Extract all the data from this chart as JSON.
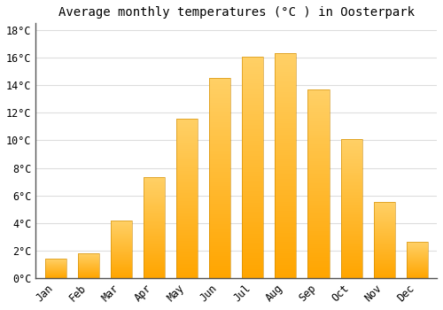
{
  "title": "Average monthly temperatures (°C ) in Oosterpark",
  "months": [
    "Jan",
    "Feb",
    "Mar",
    "Apr",
    "May",
    "Jun",
    "Jul",
    "Aug",
    "Sep",
    "Oct",
    "Nov",
    "Dec"
  ],
  "values": [
    1.4,
    1.8,
    4.2,
    7.3,
    11.6,
    14.5,
    16.1,
    16.3,
    13.7,
    10.1,
    5.5,
    2.6
  ],
  "bar_color_bottom": "#FFA500",
  "bar_color_top": "#FFD066",
  "background_color": "#FFFFFF",
  "grid_color": "#DDDDDD",
  "ylim": [
    0,
    18.5
  ],
  "yticks": [
    0,
    2,
    4,
    6,
    8,
    10,
    12,
    14,
    16,
    18
  ],
  "title_fontsize": 10,
  "tick_fontsize": 8.5,
  "font_family": "monospace",
  "bar_width": 0.65
}
